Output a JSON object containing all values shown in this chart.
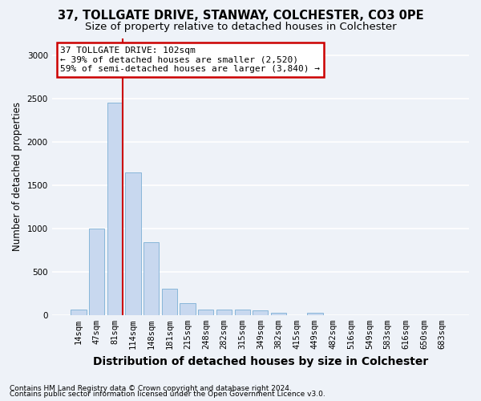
{
  "title1": "37, TOLLGATE DRIVE, STANWAY, COLCHESTER, CO3 0PE",
  "title2": "Size of property relative to detached houses in Colchester",
  "xlabel": "Distribution of detached houses by size in Colchester",
  "ylabel": "Number of detached properties",
  "categories": [
    "14sqm",
    "47sqm",
    "81sqm",
    "114sqm",
    "148sqm",
    "181sqm",
    "215sqm",
    "248sqm",
    "282sqm",
    "315sqm",
    "349sqm",
    "382sqm",
    "415sqm",
    "449sqm",
    "482sqm",
    "516sqm",
    "549sqm",
    "583sqm",
    "616sqm",
    "650sqm",
    "683sqm"
  ],
  "values": [
    60,
    1000,
    2450,
    1650,
    840,
    300,
    140,
    60,
    60,
    60,
    50,
    30,
    0,
    30,
    0,
    0,
    0,
    0,
    0,
    0,
    0
  ],
  "bar_color": "#c8d8ef",
  "bar_edge_color": "#7bafd4",
  "red_line_index": 2,
  "annotation_text": "37 TOLLGATE DRIVE: 102sqm\n← 39% of detached houses are smaller (2,520)\n59% of semi-detached houses are larger (3,840) →",
  "annotation_box_color": "white",
  "annotation_box_edge_color": "#cc0000",
  "footer1": "Contains HM Land Registry data © Crown copyright and database right 2024.",
  "footer2": "Contains public sector information licensed under the Open Government Licence v3.0.",
  "ylim": [
    0,
    3200
  ],
  "yticks": [
    0,
    500,
    1000,
    1500,
    2000,
    2500,
    3000
  ],
  "background_color": "#eef2f8",
  "grid_color": "white",
  "title1_fontsize": 10.5,
  "title2_fontsize": 9.5,
  "ylabel_fontsize": 8.5,
  "xlabel_fontsize": 10,
  "tick_fontsize": 7.5,
  "annotation_fontsize": 8,
  "footer_fontsize": 6.5
}
